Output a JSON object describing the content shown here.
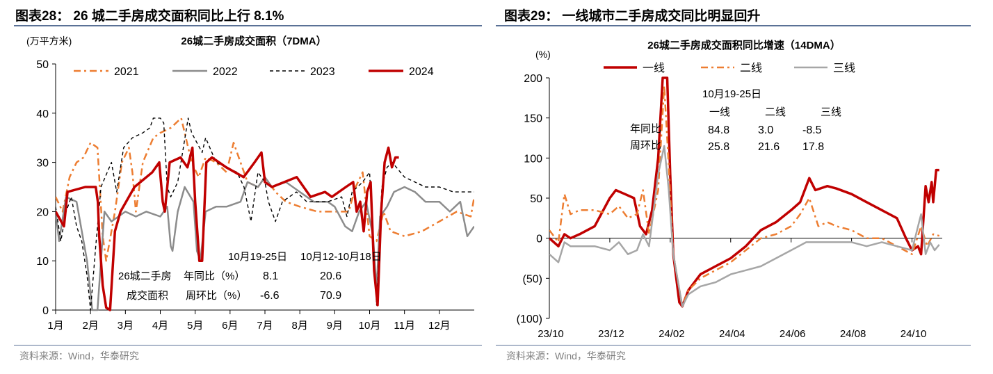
{
  "left": {
    "header": "图表28： 26 城二手房成交面积同比上行 8.1%",
    "source": "资料来源：Wind，华泰研究",
    "annotation": {
      "col1": "10月19-25日",
      "col2": "10月12-10月18日",
      "row_group": "26城二手房",
      "row_group2": "成交面积",
      "row1_label": "年同比（%）",
      "row2_label": "周环比（%）",
      "row1": [
        "8.1",
        "20.6"
      ],
      "row2": [
        "-6.6",
        "70.9"
      ]
    }
  },
  "right": {
    "header": "图表29： 一线城市二手房成交同比明显回升",
    "source": "资料来源：Wind，华泰研究",
    "annotation": {
      "title": "10月19-25日",
      "cols": [
        "一线",
        "二线",
        "三线"
      ],
      "row1_label": "年同比",
      "row2_label": "周环比",
      "row1": [
        "84.8",
        "3.0",
        "-8.5"
      ],
      "row2": [
        "25.8",
        "21.6",
        "17.8"
      ]
    }
  },
  "chart_data": [
    {
      "type": "line",
      "title": "26城二手房成交面积（7DMA）",
      "ylabel": "(万平方米)",
      "xlabel": "",
      "ylim": [
        0,
        50
      ],
      "yticks": [
        0,
        10,
        20,
        30,
        40,
        50
      ],
      "xlim": [
        1,
        13
      ],
      "xticks": [
        1,
        2,
        3,
        4,
        5,
        6,
        7,
        8,
        9,
        10,
        11,
        12
      ],
      "xtick_labels": [
        "1月",
        "2月",
        "3月",
        "4月",
        "5月",
        "6月",
        "7月",
        "8月",
        "9月",
        "10月",
        "11月",
        "12月"
      ],
      "legend_position": "top",
      "series": [
        {
          "name": "2021",
          "color": "#ed7d31",
          "style": "dashdot",
          "x": [
            1,
            1.2,
            1.4,
            1.6,
            1.8,
            2,
            2.2,
            2.35,
            2.45,
            2.7,
            2.9,
            3.1,
            3.2,
            3.3,
            3.5,
            3.8,
            4,
            4.3,
            4.6,
            4.9,
            5.1,
            5.3,
            5.6,
            5.9,
            6.1,
            6.3,
            6.5,
            6.8,
            7,
            7.3,
            7.6,
            8,
            8.5,
            9,
            9.4,
            9.6,
            9.8,
            10,
            10.2,
            10.4,
            10.6,
            11,
            11.5,
            12,
            12.5,
            12.9,
            13
          ],
          "y": [
            23,
            20,
            27,
            30,
            31,
            34,
            33,
            15,
            10,
            20,
            30,
            33,
            28,
            20,
            30,
            35,
            36,
            37,
            39,
            30,
            27,
            31,
            30,
            28,
            34,
            30,
            26,
            25,
            27,
            24,
            22,
            21,
            20,
            20,
            20,
            25,
            28,
            15,
            14,
            20,
            16,
            15,
            16,
            18,
            20,
            19,
            23
          ]
        },
        {
          "name": "2022",
          "color": "#8c8c8c",
          "style": "solid",
          "x": [
            1,
            1.1,
            1.3,
            1.6,
            1.9,
            2.05,
            2.2,
            2.4,
            2.6,
            2.8,
            3,
            3.3,
            3.6,
            4,
            4.2,
            4.3,
            4.35,
            4.5,
            4.7,
            4.95,
            5.05,
            5.15,
            5.3,
            5.6,
            5.9,
            6.3,
            6.5,
            6.8,
            7,
            7.2,
            7.6,
            8,
            8.4,
            8.8,
            9,
            9.3,
            9.5,
            9.7,
            9.9,
            10.1,
            10.2,
            10.3,
            10.5,
            10.7,
            11,
            11.3,
            11.6,
            12,
            12.3,
            12.6,
            12.8,
            13
          ],
          "y": [
            20,
            14,
            23,
            22,
            10,
            0,
            0,
            20,
            18,
            19,
            20,
            19,
            20,
            19,
            21,
            13,
            12,
            20,
            25,
            22,
            12,
            10,
            20,
            21,
            21,
            22,
            26,
            25,
            27,
            25,
            26,
            24,
            22,
            22,
            21,
            17,
            16,
            20,
            22,
            15,
            4,
            19,
            21,
            24,
            25,
            24,
            22,
            22,
            20,
            22,
            15,
            17
          ]
        },
        {
          "name": "2023",
          "color": "#000000",
          "style": "dashed",
          "x": [
            1,
            1.15,
            1.3,
            1.45,
            1.6,
            1.75,
            1.9,
            2,
            2.15,
            2.3,
            2.6,
            2.75,
            2.95,
            3.2,
            3.5,
            3.7,
            3.8,
            4,
            4.1,
            4.2,
            4.3,
            4.5,
            4.8,
            4.9,
            5.2,
            5.3,
            5.6,
            5.9,
            6.2,
            6.4,
            6.6,
            6.8,
            7,
            7.1,
            7.3,
            7.5,
            7.9,
            8.2,
            8.5,
            8.8,
            9.2,
            9.35,
            9.5,
            9.8,
            10,
            10.2,
            10.35,
            10.5,
            10.65,
            11,
            11.3,
            11.6,
            12,
            12.4,
            12.8,
            13
          ],
          "y": [
            21,
            14,
            20,
            23,
            17,
            14,
            7,
            0,
            13,
            25,
            30,
            24,
            33,
            35,
            36,
            37,
            39,
            39,
            38,
            25,
            23,
            26,
            39,
            36,
            32,
            35,
            30,
            29,
            28,
            25,
            18,
            28,
            26,
            22,
            18,
            22,
            24,
            22,
            22,
            22,
            23,
            19,
            24,
            26,
            28,
            1,
            25,
            29,
            30,
            27,
            26,
            25,
            25,
            24,
            24,
            24
          ]
        },
        {
          "name": "2024",
          "color": "#c00000",
          "style": "solid-thick",
          "x": [
            1,
            1.24,
            1.34,
            1.85,
            2.15,
            2.21,
            2.25,
            2.35,
            2.45,
            2.56,
            2.7,
            2.86,
            3.26,
            3.77,
            3.97,
            4.07,
            4.13,
            4.27,
            4.58,
            4.78,
            4.92,
            5,
            5.12,
            5.2,
            5.32,
            5.48,
            5.89,
            6.39,
            6.7,
            6.9,
            7,
            7.2,
            7.91,
            8.31,
            8.72,
            8.92,
            9.32,
            9.53,
            9.63,
            9.73,
            9.83,
            9.93,
            10.03,
            10.13,
            10.23,
            10.33,
            10.43,
            10.54,
            10.64,
            10.74,
            10.84
          ],
          "y": [
            20,
            17,
            24,
            25,
            25,
            22,
            15,
            5,
            0.5,
            0,
            16,
            20,
            25,
            28,
            30,
            22,
            20,
            30,
            31,
            29,
            33,
            22,
            10,
            10,
            30,
            31,
            29,
            27,
            30,
            32,
            26,
            25,
            27,
            23,
            24,
            23,
            25,
            26,
            20,
            22,
            16,
            24,
            26,
            8,
            1,
            20,
            30,
            33,
            29,
            31,
            31
          ]
        }
      ]
    },
    {
      "type": "line",
      "title": "26城二手房成交面积同比增速（14DMA）",
      "ylabel": "(%)",
      "ylim": [
        -100,
        200
      ],
      "yticks": [
        -100,
        -50,
        0,
        50,
        100,
        150,
        200
      ],
      "ytick_labels": [
        "(100)",
        "(50)",
        "0",
        "50",
        "100",
        "150",
        "200"
      ],
      "xlim": [
        0,
        13
      ],
      "xticks": [
        0,
        2,
        4,
        6,
        8,
        10,
        12
      ],
      "xtick_labels": [
        "23/10",
        "23/12",
        "24/02",
        "24/04",
        "24/06",
        "24/08",
        "24/10"
      ],
      "legend_position": "top",
      "series": [
        {
          "name": "一线",
          "color": "#c00000",
          "style": "solid-thick",
          "x": [
            0,
            0.3,
            0.5,
            0.7,
            1,
            1.5,
            2,
            2.2,
            2.5,
            2.8,
            3,
            3.2,
            3.4,
            3.6,
            3.75,
            3.9,
            4,
            4.1,
            4.3,
            4.4,
            4.6,
            5,
            5.5,
            6,
            6.5,
            7,
            7.5,
            8,
            8.3,
            8.6,
            8.8,
            9.2,
            9.5,
            10,
            10.5,
            11,
            11.5,
            11.8,
            12,
            12.2,
            12.3,
            12.45,
            12.55,
            12.65,
            12.7,
            12.8,
            12.9
          ],
          "y": [
            0,
            -10,
            5,
            0,
            5,
            15,
            50,
            60,
            55,
            50,
            15,
            5,
            35,
            100,
            200,
            200,
            80,
            -20,
            -80,
            -85,
            -65,
            -45,
            -35,
            -25,
            -10,
            10,
            20,
            35,
            45,
            75,
            60,
            65,
            62,
            55,
            45,
            35,
            25,
            0,
            -15,
            -10,
            -20,
            65,
            45,
            70,
            45,
            85,
            85
          ]
        },
        {
          "name": "二线",
          "color": "#ed7d31",
          "style": "dashdot",
          "x": [
            0,
            0.3,
            0.5,
            0.7,
            1,
            1.5,
            2,
            2.3,
            2.6,
            2.9,
            3.1,
            3.3,
            3.6,
            3.8,
            3.95,
            4.1,
            4.4,
            4.6,
            5,
            5.5,
            6,
            6.5,
            7,
            7.5,
            8,
            8.3,
            8.6,
            8.9,
            9.2,
            9.5,
            10,
            10.5,
            11,
            11.5,
            12,
            12.3,
            12.5,
            12.7,
            12.9
          ],
          "y": [
            10,
            -5,
            55,
            30,
            35,
            35,
            30,
            40,
            25,
            30,
            60,
            5,
            60,
            190,
            90,
            -20,
            -85,
            -65,
            -50,
            -40,
            -30,
            -15,
            0,
            5,
            15,
            30,
            50,
            15,
            20,
            15,
            10,
            0,
            0,
            -10,
            -20,
            15,
            -10,
            5,
            3
          ]
        },
        {
          "name": "三线",
          "color": "#a6a6a6",
          "style": "solid",
          "x": [
            0,
            0.3,
            0.5,
            0.7,
            1,
            1.5,
            2,
            2.3,
            2.6,
            2.9,
            3.1,
            3.3,
            3.6,
            3.8,
            3.95,
            4.1,
            4.4,
            4.6,
            5,
            5.5,
            6,
            6.5,
            7,
            7.5,
            8,
            8.5,
            9,
            9.5,
            10,
            10.5,
            11,
            11.5,
            12,
            12.3,
            12.45,
            12.6,
            12.75,
            12.9
          ],
          "y": [
            -20,
            -30,
            -5,
            -10,
            -10,
            -10,
            -15,
            -5,
            -20,
            -15,
            5,
            -10,
            80,
            115,
            60,
            -20,
            -85,
            -70,
            -60,
            -55,
            -45,
            -40,
            -35,
            -25,
            -15,
            -5,
            -5,
            -5,
            -5,
            -10,
            -5,
            -10,
            -15,
            30,
            -20,
            -5,
            -15,
            -8
          ]
        }
      ]
    }
  ]
}
